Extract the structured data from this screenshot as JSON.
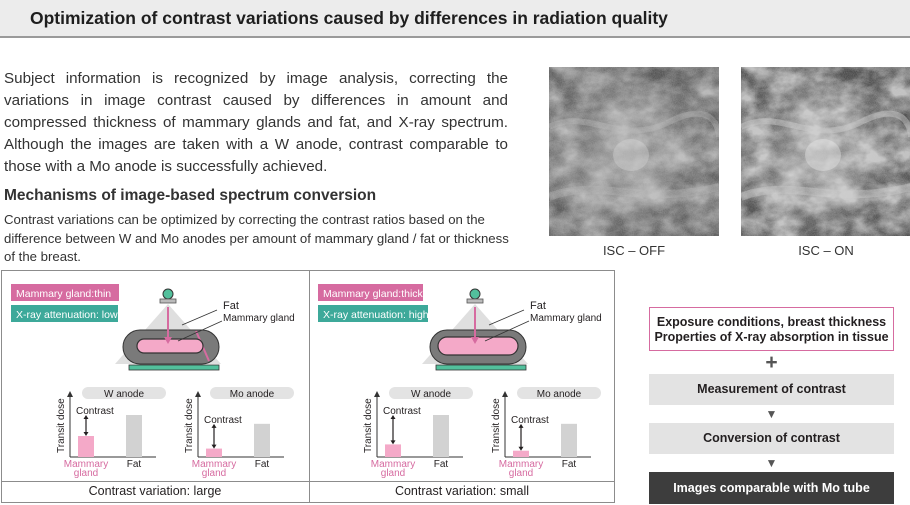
{
  "title": "Optimization of contrast variations caused by differences in radiation quality",
  "intro": "Subject information is recognized by image analysis, correcting the variations in image contrast caused by differences in amount and compressed thickness of mammary glands and fat, and X-ray spectrum. Although the images are taken with a W anode, contrast comparable to those with a Mo anode is successfully achieved.",
  "mechanisms": {
    "title": "Mechanisms of image-based spectrum conversion",
    "text": "Contrast variations can be optimized by correcting the contrast ratios based on the difference between W and Mo anodes per amount of mammary gland / fat or thickness of the breast."
  },
  "images": [
    {
      "caption": "ISC – OFF",
      "description_icon": "mammogram-image"
    },
    {
      "caption": "ISC – ON",
      "description_icon": "mammogram-image"
    }
  ],
  "panels": [
    {
      "tag_gland": "Mammary gland:thin",
      "tag_attenuation": "X-ray attenuation: low",
      "label_fat": "Fat",
      "label_gland": "Mammary gland",
      "caption": "Contrast variation: large",
      "charts": [
        {
          "anode": "W anode",
          "ylabel": "Transit dose",
          "contrast_label": "Contrast",
          "categories": [
            "Mammary gland",
            "Fat"
          ],
          "values": [
            0.5,
            1.0
          ]
        },
        {
          "anode": "Mo anode",
          "ylabel": "Transit dose",
          "contrast_label": "Contrast",
          "categories": [
            "Mammary gland",
            "Fat"
          ],
          "values": [
            0.2,
            0.79
          ]
        }
      ]
    },
    {
      "tag_gland": "Mammary gland:thick",
      "tag_attenuation": "X-ray attenuation: high",
      "label_fat": "Fat",
      "label_gland": "Mammary gland",
      "caption": "Contrast variation: small",
      "charts": [
        {
          "anode": "W anode",
          "ylabel": "Transit dose",
          "contrast_label": "Contrast",
          "categories": [
            "Mammary gland",
            "Fat"
          ],
          "values": [
            0.3,
            1.0
          ]
        },
        {
          "anode": "Mo anode",
          "ylabel": "Transit dose",
          "contrast_label": "Contrast",
          "categories": [
            "Mammary gland",
            "Fat"
          ],
          "values": [
            0.15,
            0.79
          ]
        }
      ]
    }
  ],
  "flow": {
    "step1_line1": "Exposure conditions, breast thickness",
    "step1_line2": "Properties of X-ray absorption in tissue",
    "plus": "+",
    "step2": "Measurement of contrast",
    "step3": "Conversion of contrast",
    "step4": "Images comparable with Mo tube",
    "arrow": "▼"
  },
  "colors": {
    "pink": "#d66ba0",
    "pink_light": "#f4a9c8",
    "teal": "#3da99a",
    "green_base": "#52c09c",
    "gray_bar": "#d2d2d2",
    "dark": "#3d3d3d"
  }
}
